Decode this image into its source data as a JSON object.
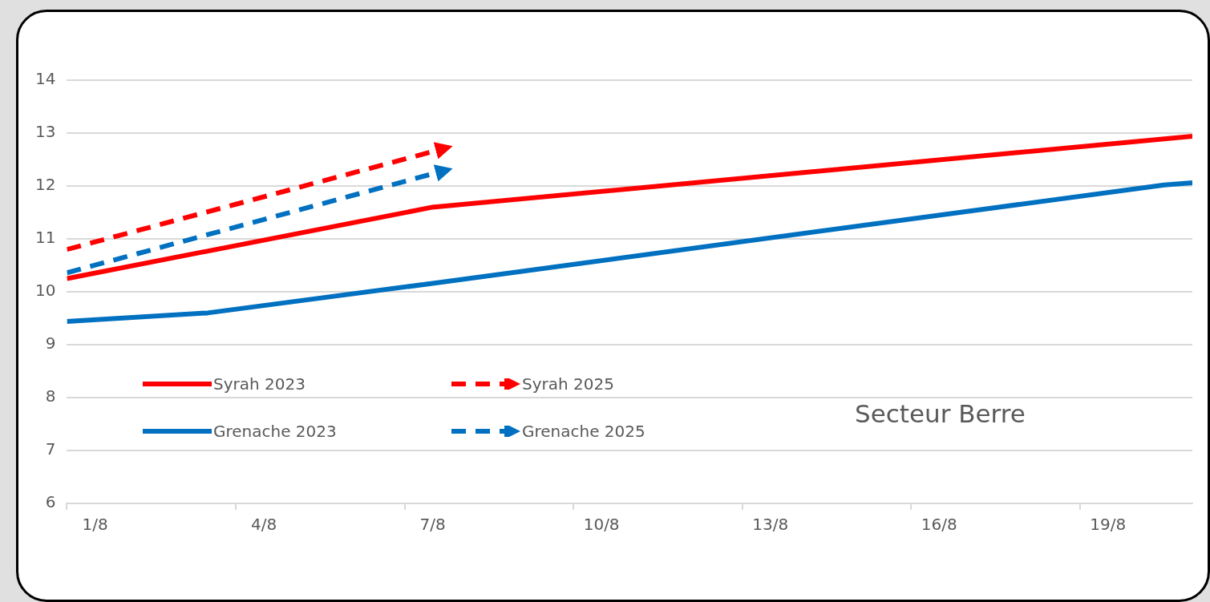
{
  "chart_data": {
    "type": "line",
    "xlim": [
      "--07-31T12:00",
      "--08-20T12:00"
    ],
    "xticks": [
      {
        "value": "--07-31T12:00",
        "label": null
      },
      {
        "value": "--08-01",
        "label": "1/8"
      },
      {
        "value": "--08-03T12:00",
        "label": null
      },
      {
        "value": "--08-04",
        "label": "4/8"
      },
      {
        "value": "--08-06T12:00",
        "label": null
      },
      {
        "value": "--08-07",
        "label": "7/8"
      },
      {
        "value": "--08-09T12:00",
        "label": null
      },
      {
        "value": "--08-10",
        "label": "10/8"
      },
      {
        "value": "--08-12T12:00",
        "label": null
      },
      {
        "value": "--08-13",
        "label": "13/8"
      },
      {
        "value": "--08-15T12:00",
        "label": null
      },
      {
        "value": "--08-16",
        "label": "16/8"
      },
      {
        "value": "--08-18T12:00",
        "label": null
      },
      {
        "value": "--08-19",
        "label": "19/8"
      }
    ],
    "ylim": [
      6,
      14
    ],
    "yticks": [
      6,
      7,
      8,
      9,
      10,
      11,
      12,
      13,
      14
    ],
    "grid": "y",
    "legend": "bottom left",
    "marker": "none",
    "series": [
      {
        "name": "Syrah 2023",
        "color": "#ff0000",
        "line_style": "solid",
        "x": [
          "--07-31T12:00",
          "--08-07",
          "--08-20T12:00"
        ],
        "values": [
          10.25,
          11.6,
          12.94
        ]
      },
      {
        "name": "Syrah 2025",
        "color": "#ff0000",
        "line_style": "dashed",
        "x": [
          "--07-31T12:00",
          "--08-07"
        ],
        "values": [
          10.8,
          12.65
        ]
      },
      {
        "name": "Grenache 2023",
        "color": "#0070c0",
        "line_style": "solid",
        "x": [
          "--07-31T12:00",
          "--08-03",
          "--08-07",
          "--08-20",
          "--08-20T12:00"
        ],
        "values": [
          9.44,
          9.6,
          10.16,
          12.02,
          12.06
        ]
      },
      {
        "name": "Grenache 2025",
        "color": "#0070c0",
        "line_style": "dashed",
        "x": [
          "--07-31T12:00",
          "--08-07"
        ],
        "values": [
          10.36,
          12.23
        ]
      }
    ],
    "annotations": [
      "Secteur Berre"
    ]
  }
}
